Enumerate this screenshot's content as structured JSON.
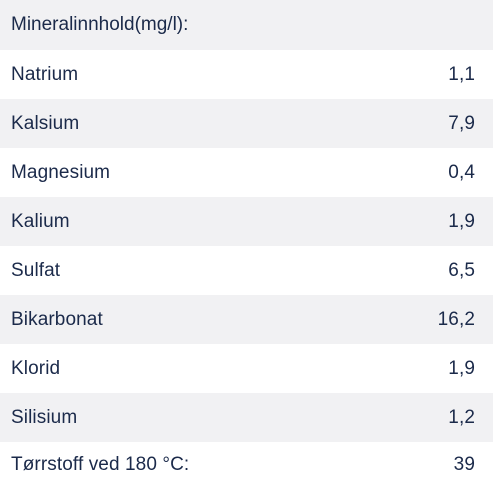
{
  "table": {
    "header": "Mineralinnhold(mg/l):",
    "rows": [
      {
        "label": "Natrium",
        "value": "1,1"
      },
      {
        "label": "Kalsium",
        "value": "7,9"
      },
      {
        "label": "Magnesium",
        "value": "0,4"
      },
      {
        "label": "Kalium",
        "value": "1,9"
      },
      {
        "label": "Sulfat",
        "value": "6,5"
      },
      {
        "label": "Bikarbonat",
        "value": "16,2"
      },
      {
        "label": "Klorid",
        "value": "1,9"
      },
      {
        "label": "Silisium",
        "value": "1,2"
      },
      {
        "label": "Tørrstoff ved 180 °C:",
        "value": "39"
      }
    ]
  }
}
